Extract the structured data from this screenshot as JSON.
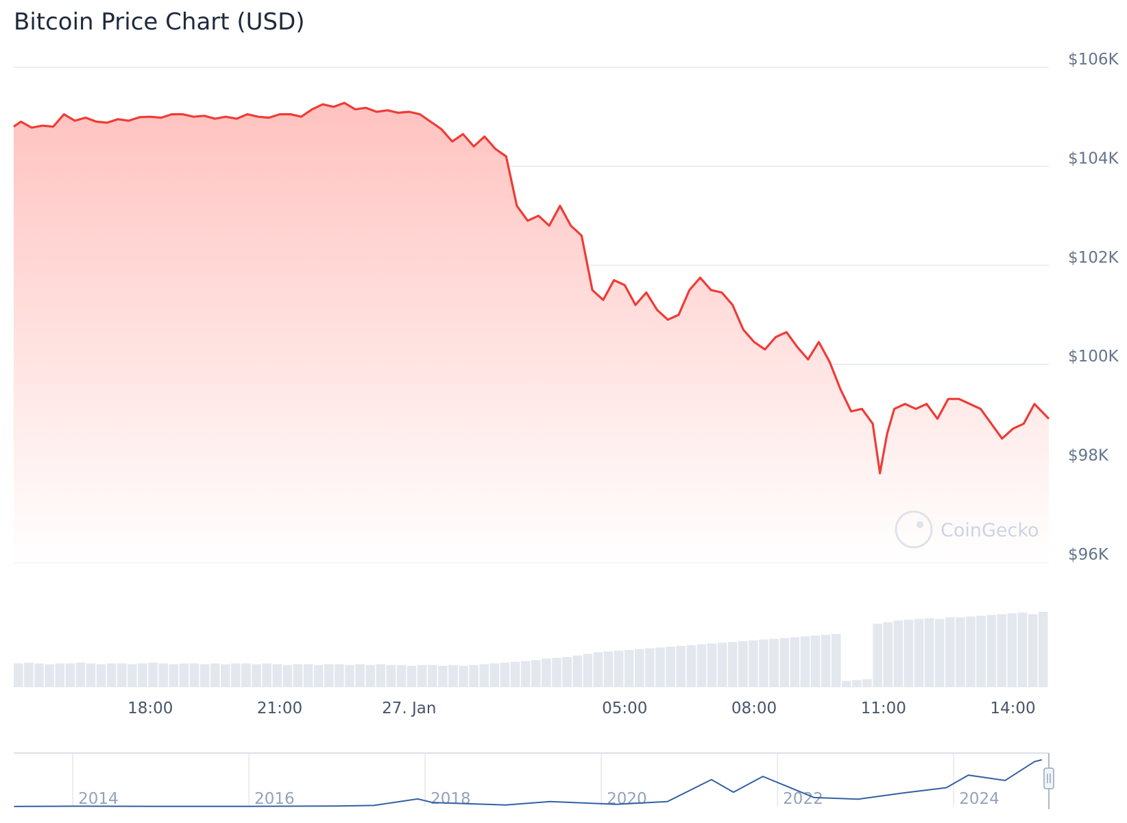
{
  "title": "Bitcoin Price Chart (USD)",
  "watermark": "CoinGecko",
  "colors": {
    "line": "#ef3b36",
    "area_top": "#ffc2bf",
    "area_bottom": "#ffffff",
    "volume": "#e3e8ee",
    "navigator_line": "#335fa3",
    "grid": "#e6e9ee"
  },
  "chart_data": {
    "type": "line",
    "title": "Bitcoin Price Chart (USD)",
    "xlabel": "",
    "ylabel": "",
    "ylim": [
      96000,
      106000
    ],
    "ytick_values": [
      96000,
      98000,
      100000,
      102000,
      104000,
      106000
    ],
    "ytick_labels": [
      "$96K",
      "$98K",
      "$100K",
      "$102K",
      "$104K",
      "$106K"
    ],
    "x_domain": [
      "26 Jan 14:50",
      "27 Jan 14:50"
    ],
    "x_ticks": [
      {
        "time": "26 Jan 18:00",
        "label": "18:00"
      },
      {
        "time": "26 Jan 21:00",
        "label": "21:00"
      },
      {
        "time": "27 Jan 00:00",
        "label": "27. Jan"
      },
      {
        "time": "27 Jan 05:00",
        "label": "05:00"
      },
      {
        "time": "27 Jan 08:00",
        "label": "08:00"
      },
      {
        "time": "27 Jan 11:00",
        "label": "11:00"
      },
      {
        "time": "27 Jan 14:00",
        "label": "14:00"
      }
    ],
    "grid": true,
    "series": [
      {
        "type": "line",
        "points": [
          [
            "26 Jan 14:50",
            104800
          ],
          [
            "26 Jan 15:00",
            104900
          ],
          [
            "26 Jan 15:15",
            104780
          ],
          [
            "26 Jan 15:30",
            104820
          ],
          [
            "26 Jan 15:45",
            104800
          ],
          [
            "26 Jan 16:00",
            105050
          ],
          [
            "26 Jan 16:15",
            104920
          ],
          [
            "26 Jan 16:30",
            104980
          ],
          [
            "26 Jan 16:45",
            104900
          ],
          [
            "26 Jan 17:00",
            104880
          ],
          [
            "26 Jan 17:15",
            104950
          ],
          [
            "26 Jan 17:30",
            104920
          ],
          [
            "26 Jan 17:45",
            104990
          ],
          [
            "26 Jan 18:00",
            105000
          ],
          [
            "26 Jan 18:15",
            104980
          ],
          [
            "26 Jan 18:30",
            105050
          ],
          [
            "26 Jan 18:45",
            105050
          ],
          [
            "26 Jan 19:00",
            105000
          ],
          [
            "26 Jan 19:15",
            105020
          ],
          [
            "26 Jan 19:30",
            104960
          ],
          [
            "26 Jan 19:45",
            105000
          ],
          [
            "26 Jan 20:00",
            104960
          ],
          [
            "26 Jan 20:15",
            105050
          ],
          [
            "26 Jan 20:30",
            105000
          ],
          [
            "26 Jan 20:45",
            104980
          ],
          [
            "26 Jan 21:00",
            105050
          ],
          [
            "26 Jan 21:15",
            105050
          ],
          [
            "26 Jan 21:30",
            105000
          ],
          [
            "26 Jan 21:45",
            105150
          ],
          [
            "26 Jan 22:00",
            105250
          ],
          [
            "26 Jan 22:15",
            105200
          ],
          [
            "26 Jan 22:30",
            105280
          ],
          [
            "26 Jan 22:45",
            105150
          ],
          [
            "26 Jan 23:00",
            105180
          ],
          [
            "26 Jan 23:15",
            105100
          ],
          [
            "26 Jan 23:30",
            105130
          ],
          [
            "26 Jan 23:45",
            105080
          ],
          [
            "27 Jan 00:00",
            105100
          ],
          [
            "27 Jan 00:15",
            105050
          ],
          [
            "27 Jan 00:30",
            104900
          ],
          [
            "27 Jan 00:45",
            104750
          ],
          [
            "27 Jan 01:00",
            104500
          ],
          [
            "27 Jan 01:15",
            104650
          ],
          [
            "27 Jan 01:30",
            104400
          ],
          [
            "27 Jan 01:45",
            104600
          ],
          [
            "27 Jan 02:00",
            104350
          ],
          [
            "27 Jan 02:15",
            104200
          ],
          [
            "27 Jan 02:30",
            103200
          ],
          [
            "27 Jan 02:45",
            102900
          ],
          [
            "27 Jan 03:00",
            103000
          ],
          [
            "27 Jan 03:15",
            102800
          ],
          [
            "27 Jan 03:30",
            103200
          ],
          [
            "27 Jan 03:45",
            102800
          ],
          [
            "27 Jan 04:00",
            102600
          ],
          [
            "27 Jan 04:15",
            101500
          ],
          [
            "27 Jan 04:30",
            101300
          ],
          [
            "27 Jan 04:45",
            101700
          ],
          [
            "27 Jan 05:00",
            101600
          ],
          [
            "27 Jan 05:15",
            101200
          ],
          [
            "27 Jan 05:30",
            101450
          ],
          [
            "27 Jan 05:45",
            101100
          ],
          [
            "27 Jan 06:00",
            100900
          ],
          [
            "27 Jan 06:15",
            101000
          ],
          [
            "27 Jan 06:30",
            101500
          ],
          [
            "27 Jan 06:45",
            101750
          ],
          [
            "27 Jan 07:00",
            101500
          ],
          [
            "27 Jan 07:15",
            101450
          ],
          [
            "27 Jan 07:30",
            101200
          ],
          [
            "27 Jan 07:45",
            100700
          ],
          [
            "27 Jan 08:00",
            100450
          ],
          [
            "27 Jan 08:15",
            100300
          ],
          [
            "27 Jan 08:30",
            100550
          ],
          [
            "27 Jan 08:45",
            100650
          ],
          [
            "27 Jan 09:00",
            100350
          ],
          [
            "27 Jan 09:15",
            100100
          ],
          [
            "27 Jan 09:30",
            100450
          ],
          [
            "27 Jan 09:45",
            100050
          ],
          [
            "27 Jan 10:00",
            99500
          ],
          [
            "27 Jan 10:15",
            99050
          ],
          [
            "27 Jan 10:30",
            99100
          ],
          [
            "27 Jan 10:45",
            98800
          ],
          [
            "27 Jan 10:55",
            97800
          ],
          [
            "27 Jan 11:05",
            98600
          ],
          [
            "27 Jan 11:15",
            99100
          ],
          [
            "27 Jan 11:30",
            99200
          ],
          [
            "27 Jan 11:45",
            99100
          ],
          [
            "27 Jan 12:00",
            99200
          ],
          [
            "27 Jan 12:15",
            98900
          ],
          [
            "27 Jan 12:30",
            99300
          ],
          [
            "27 Jan 12:45",
            99300
          ],
          [
            "27 Jan 13:00",
            99200
          ],
          [
            "27 Jan 13:15",
            99100
          ],
          [
            "27 Jan 13:30",
            98800
          ],
          [
            "27 Jan 13:45",
            98500
          ],
          [
            "27 Jan 14:00",
            98700
          ],
          [
            "27 Jan 14:15",
            98800
          ],
          [
            "27 Jan 14:30",
            99200
          ],
          [
            "27 Jan 14:50",
            98900
          ]
        ]
      },
      {
        "type": "volume",
        "note_unscaled": true,
        "start": "26 Jan 14:50",
        "end": "27 Jan 14:50",
        "values": [
          30,
          31,
          30,
          29,
          30,
          30,
          31,
          30,
          29,
          30,
          30,
          29,
          30,
          31,
          30,
          29,
          30,
          30,
          29,
          30,
          29,
          30,
          30,
          29,
          30,
          29,
          28,
          29,
          29,
          28,
          29,
          29,
          28,
          29,
          28,
          29,
          28,
          28,
          27,
          28,
          28,
          27,
          28,
          27,
          28,
          29,
          30,
          31,
          32,
          33,
          34,
          36,
          37,
          38,
          40,
          42,
          44,
          45,
          46,
          47,
          48,
          49,
          50,
          51,
          52,
          53,
          54,
          55,
          56,
          57,
          58,
          59,
          60,
          61,
          62,
          63,
          64,
          65,
          66,
          67,
          8,
          9,
          10,
          80,
          82,
          84,
          85,
          86,
          87,
          86,
          88,
          88,
          89,
          90,
          91,
          92,
          93,
          94,
          92,
          95
        ]
      }
    ],
    "navigator": {
      "x_ticks": [
        "2014",
        "2016",
        "2018",
        "2020",
        "2022",
        "2024"
      ],
      "series": [
        [
          "2013-05",
          120
        ],
        [
          "2014-01",
          800
        ],
        [
          "2015-01",
          250
        ],
        [
          "2016-01",
          400
        ],
        [
          "2017-01",
          1000
        ],
        [
          "2017-06",
          2500
        ],
        [
          "2017-12",
          17000
        ],
        [
          "2018-02",
          9000
        ],
        [
          "2018-12",
          3500
        ],
        [
          "2019-06",
          11000
        ],
        [
          "2020-03",
          5000
        ],
        [
          "2020-10",
          11000
        ],
        [
          "2021-04",
          60000
        ],
        [
          "2021-07",
          32000
        ],
        [
          "2021-11",
          67000
        ],
        [
          "2022-06",
          20000
        ],
        [
          "2022-12",
          16500
        ],
        [
          "2023-06",
          30000
        ],
        [
          "2023-12",
          42000
        ],
        [
          "2024-03",
          70000
        ],
        [
          "2024-08",
          58000
        ],
        [
          "2024-12",
          100000
        ],
        [
          "2025-01",
          104000
        ]
      ]
    }
  }
}
